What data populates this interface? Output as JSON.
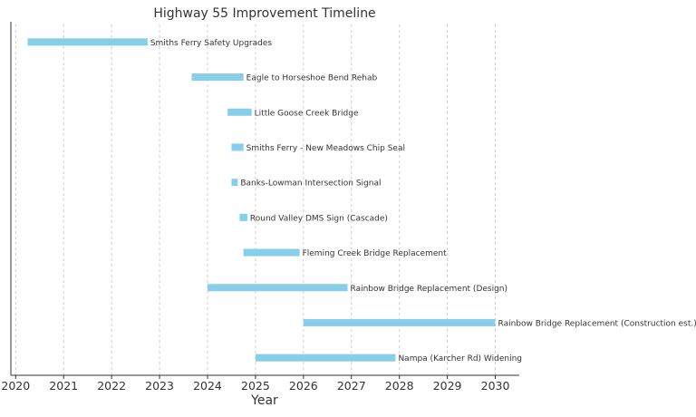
{
  "chart_data": {
    "type": "bar",
    "orientation": "horizontal-timeline",
    "title": "Highway 55 Improvement Timeline",
    "xlabel": "Year",
    "ylabel": "",
    "xlim": [
      2019.9,
      2030.5
    ],
    "x_ticks": [
      "2020",
      "2021",
      "2022",
      "2023",
      "2024",
      "2025",
      "2026",
      "2027",
      "2028",
      "2029",
      "2030"
    ],
    "grid": "vertical-dashed",
    "bar_color": "#87ceeb",
    "tasks": [
      {
        "label": "Smiths Ferry Safety Upgrades",
        "start": 2020.25,
        "end": 2022.75
      },
      {
        "label": "Eagle to Horseshoe Bend Rehab",
        "start": 2023.67,
        "end": 2024.75
      },
      {
        "label": "Little Goose Creek Bridge",
        "start": 2024.42,
        "end": 2024.92
      },
      {
        "label": "Smiths Ferry - New Meadows Chip Seal",
        "start": 2024.5,
        "end": 2024.75
      },
      {
        "label": "Banks-Lowman Intersection Signal",
        "start": 2024.5,
        "end": 2024.63
      },
      {
        "label": "Round Valley DMS Sign (Cascade)",
        "start": 2024.67,
        "end": 2024.83
      },
      {
        "label": "Fleming Creek Bridge Replacement",
        "start": 2024.75,
        "end": 2025.92
      },
      {
        "label": "Rainbow Bridge Replacement (Design)",
        "start": 2024.0,
        "end": 2026.92
      },
      {
        "label": "Rainbow Bridge Replacement (Construction est.)",
        "start": 2026.0,
        "end": 2030.0
      },
      {
        "label": "Nampa (Karcher Rd) Widening",
        "start": 2025.0,
        "end": 2027.92
      }
    ]
  }
}
